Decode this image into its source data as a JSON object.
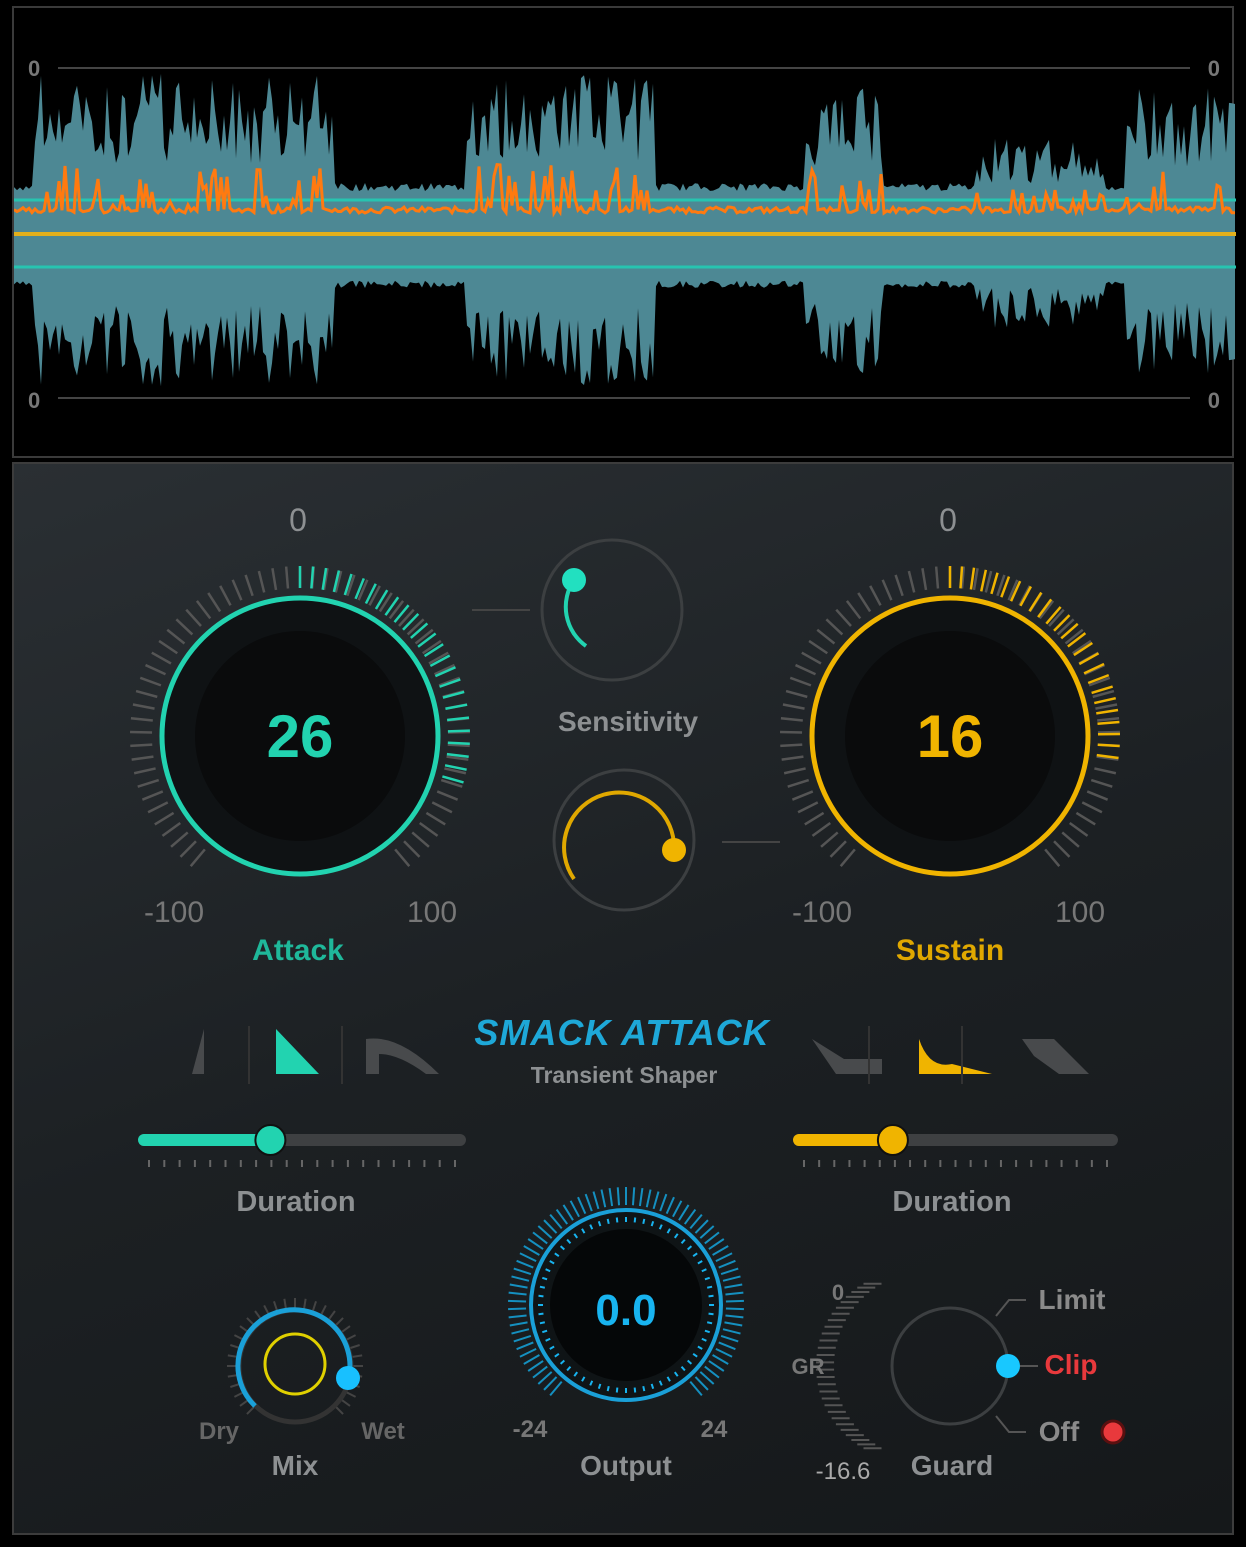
{
  "waveform": {
    "scale_top_left": "0",
    "scale_top_right": "0",
    "scale_bottom_left": "0",
    "scale_bottom_right": "0"
  },
  "attack": {
    "value": "26",
    "zero": "0",
    "min": "-100",
    "max": "100",
    "label": "Attack",
    "level": 0.63,
    "color": "#22d3b0"
  },
  "sustain": {
    "value": "16",
    "zero": "0",
    "min": "-100",
    "max": "100",
    "label": "Sustain",
    "level": 0.58,
    "color": "#f0b400"
  },
  "sensitivity": {
    "label": "Sensitivity"
  },
  "logo": {
    "name": "SMACK ATTACK",
    "subtitle": "Transient Shaper"
  },
  "attack_shapes": {
    "selected": 1
  },
  "sustain_shapes": {
    "selected": 1
  },
  "attack_duration": {
    "label": "Duration",
    "level": 0.4
  },
  "sustain_duration": {
    "label": "Duration",
    "level": 0.3
  },
  "mix": {
    "label": "Mix",
    "dry": "Dry",
    "wet": "Wet",
    "level": 1.0
  },
  "output": {
    "value": "0.0",
    "min": "-24",
    "max": "24",
    "label": "Output",
    "color": "#18b4f0"
  },
  "guard": {
    "label": "Guard",
    "gr_label": "GR",
    "gr_top": "0",
    "gr_value": "-16.6",
    "options": [
      "Limit",
      "Clip",
      "Off"
    ],
    "selected": "Clip",
    "clip_color": "#e8393c"
  }
}
